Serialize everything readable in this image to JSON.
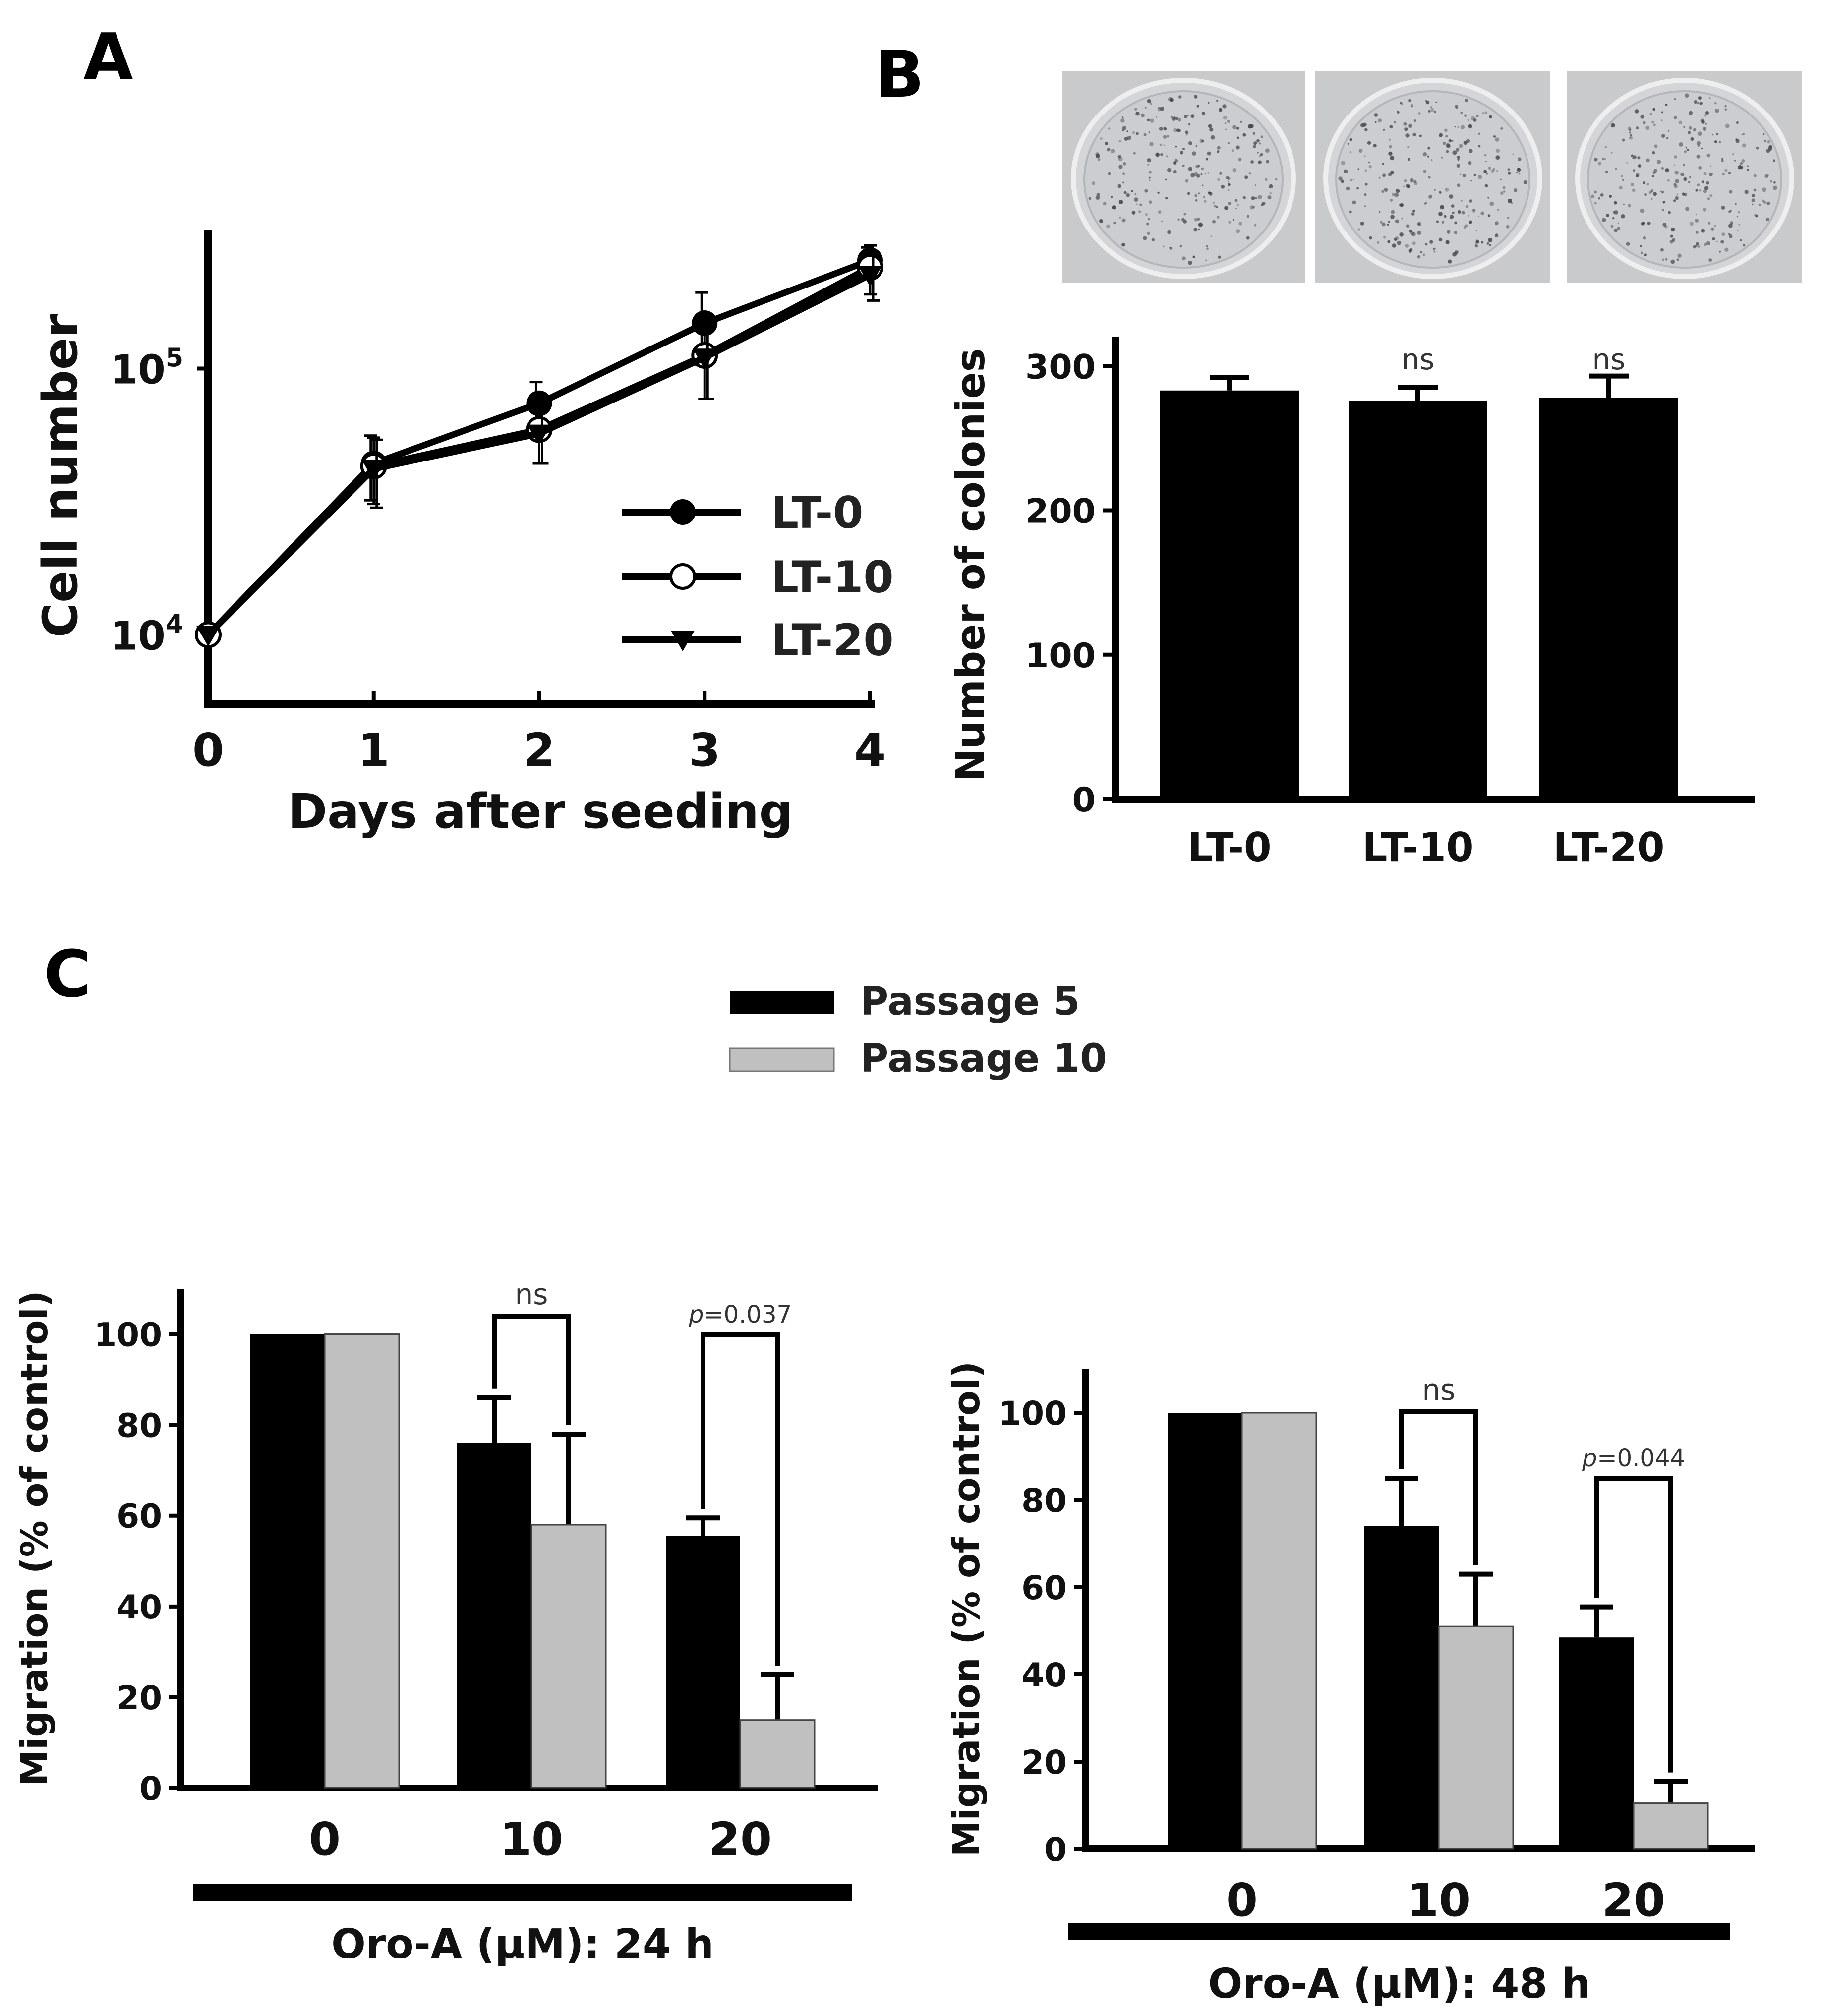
{
  "panels": {
    "A": "A",
    "B": "B",
    "C": "C"
  },
  "colors": {
    "black": "#000000",
    "gray": "#c0c0c0",
    "dish_bg": "#c9cacc",
    "dish_fill": "#cfd1d4"
  },
  "images": {
    "colony_dishes": [
      "dish-lt-0",
      "dish-lt-10",
      "dish-lt-20"
    ]
  },
  "chart_data": [
    {
      "id": "A",
      "type": "line",
      "xlabel": "Days after seeding",
      "ylabel": "Cell number",
      "yscale": "log",
      "ylim": [
        5500,
        330000
      ],
      "xlim": [
        0,
        4
      ],
      "x": [
        0,
        1,
        2,
        3,
        4
      ],
      "xticks": [
        "0",
        "1",
        "2",
        "3",
        "4"
      ],
      "yticks": [
        {
          "value": 10000,
          "base": "10",
          "exp": "4"
        },
        {
          "value": 100000,
          "base": "10",
          "exp": "5"
        }
      ],
      "series": [
        {
          "name": "LT-0",
          "marker": "filled-circle",
          "values": [
            10000,
            44000,
            74000,
            148000,
            255000
          ],
          "err": [
            0,
            12000,
            15000,
            45000,
            30000
          ]
        },
        {
          "name": "LT-10",
          "marker": "open-circle",
          "values": [
            10000,
            43000,
            59000,
            112000,
            240000
          ],
          "err": [
            0,
            12000,
            15000,
            35000,
            50000
          ]
        },
        {
          "name": "LT-20",
          "marker": "filled-triangle-down",
          "values": [
            10000,
            42000,
            57000,
            110000,
            225000
          ],
          "err": [
            0,
            12000,
            13000,
            33000,
            45000
          ]
        }
      ]
    },
    {
      "id": "B",
      "type": "bar",
      "ylabel": "Number of colonies",
      "categories": [
        "LT-0",
        "LT-10",
        "LT-20"
      ],
      "values": [
        283,
        276,
        278
      ],
      "err": [
        9,
        9,
        15
      ],
      "annotations": [
        "",
        "ns",
        "ns"
      ],
      "ylim": [
        0,
        320
      ],
      "yticks": [
        "0",
        "100",
        "200",
        "300"
      ]
    },
    {
      "id": "C-24h",
      "type": "bar",
      "ylabel": "Migration (% of control)",
      "xlabel": "Oro-A (μM): 24 h",
      "categories": [
        "0",
        "10",
        "20"
      ],
      "ylim": [
        0,
        110
      ],
      "yticks": [
        "0",
        "20",
        "40",
        "60",
        "80",
        "100"
      ],
      "series": [
        {
          "name": "Passage 5",
          "values": [
            100,
            76,
            55.5
          ],
          "err": [
            0,
            10,
            4
          ]
        },
        {
          "name": "Passage 10",
          "values": [
            100,
            58,
            15
          ],
          "err": [
            0,
            20,
            10
          ]
        }
      ],
      "comparisons": [
        {
          "category": "10",
          "label": "ns",
          "p": ""
        },
        {
          "category": "20",
          "label": "=0.037",
          "p": "p"
        }
      ]
    },
    {
      "id": "C-48h",
      "type": "bar",
      "ylabel": "Migration (% of control)",
      "xlabel": "Oro-A (μM): 48 h",
      "categories": [
        "0",
        "10",
        "20"
      ],
      "ylim": [
        0,
        110
      ],
      "yticks": [
        "0",
        "20",
        "40",
        "60",
        "80",
        "100"
      ],
      "series": [
        {
          "name": "Passage 5",
          "values": [
            100,
            74,
            48.5
          ],
          "err": [
            0,
            11,
            7
          ]
        },
        {
          "name": "Passage 10",
          "values": [
            100,
            51,
            10.5
          ],
          "err": [
            0,
            12,
            5
          ]
        }
      ],
      "comparisons": [
        {
          "category": "10",
          "label": "ns",
          "p": ""
        },
        {
          "category": "20",
          "label": "=0.044",
          "p": "p"
        }
      ]
    }
  ],
  "legend_C": [
    "Passage 5",
    "Passage 10"
  ]
}
